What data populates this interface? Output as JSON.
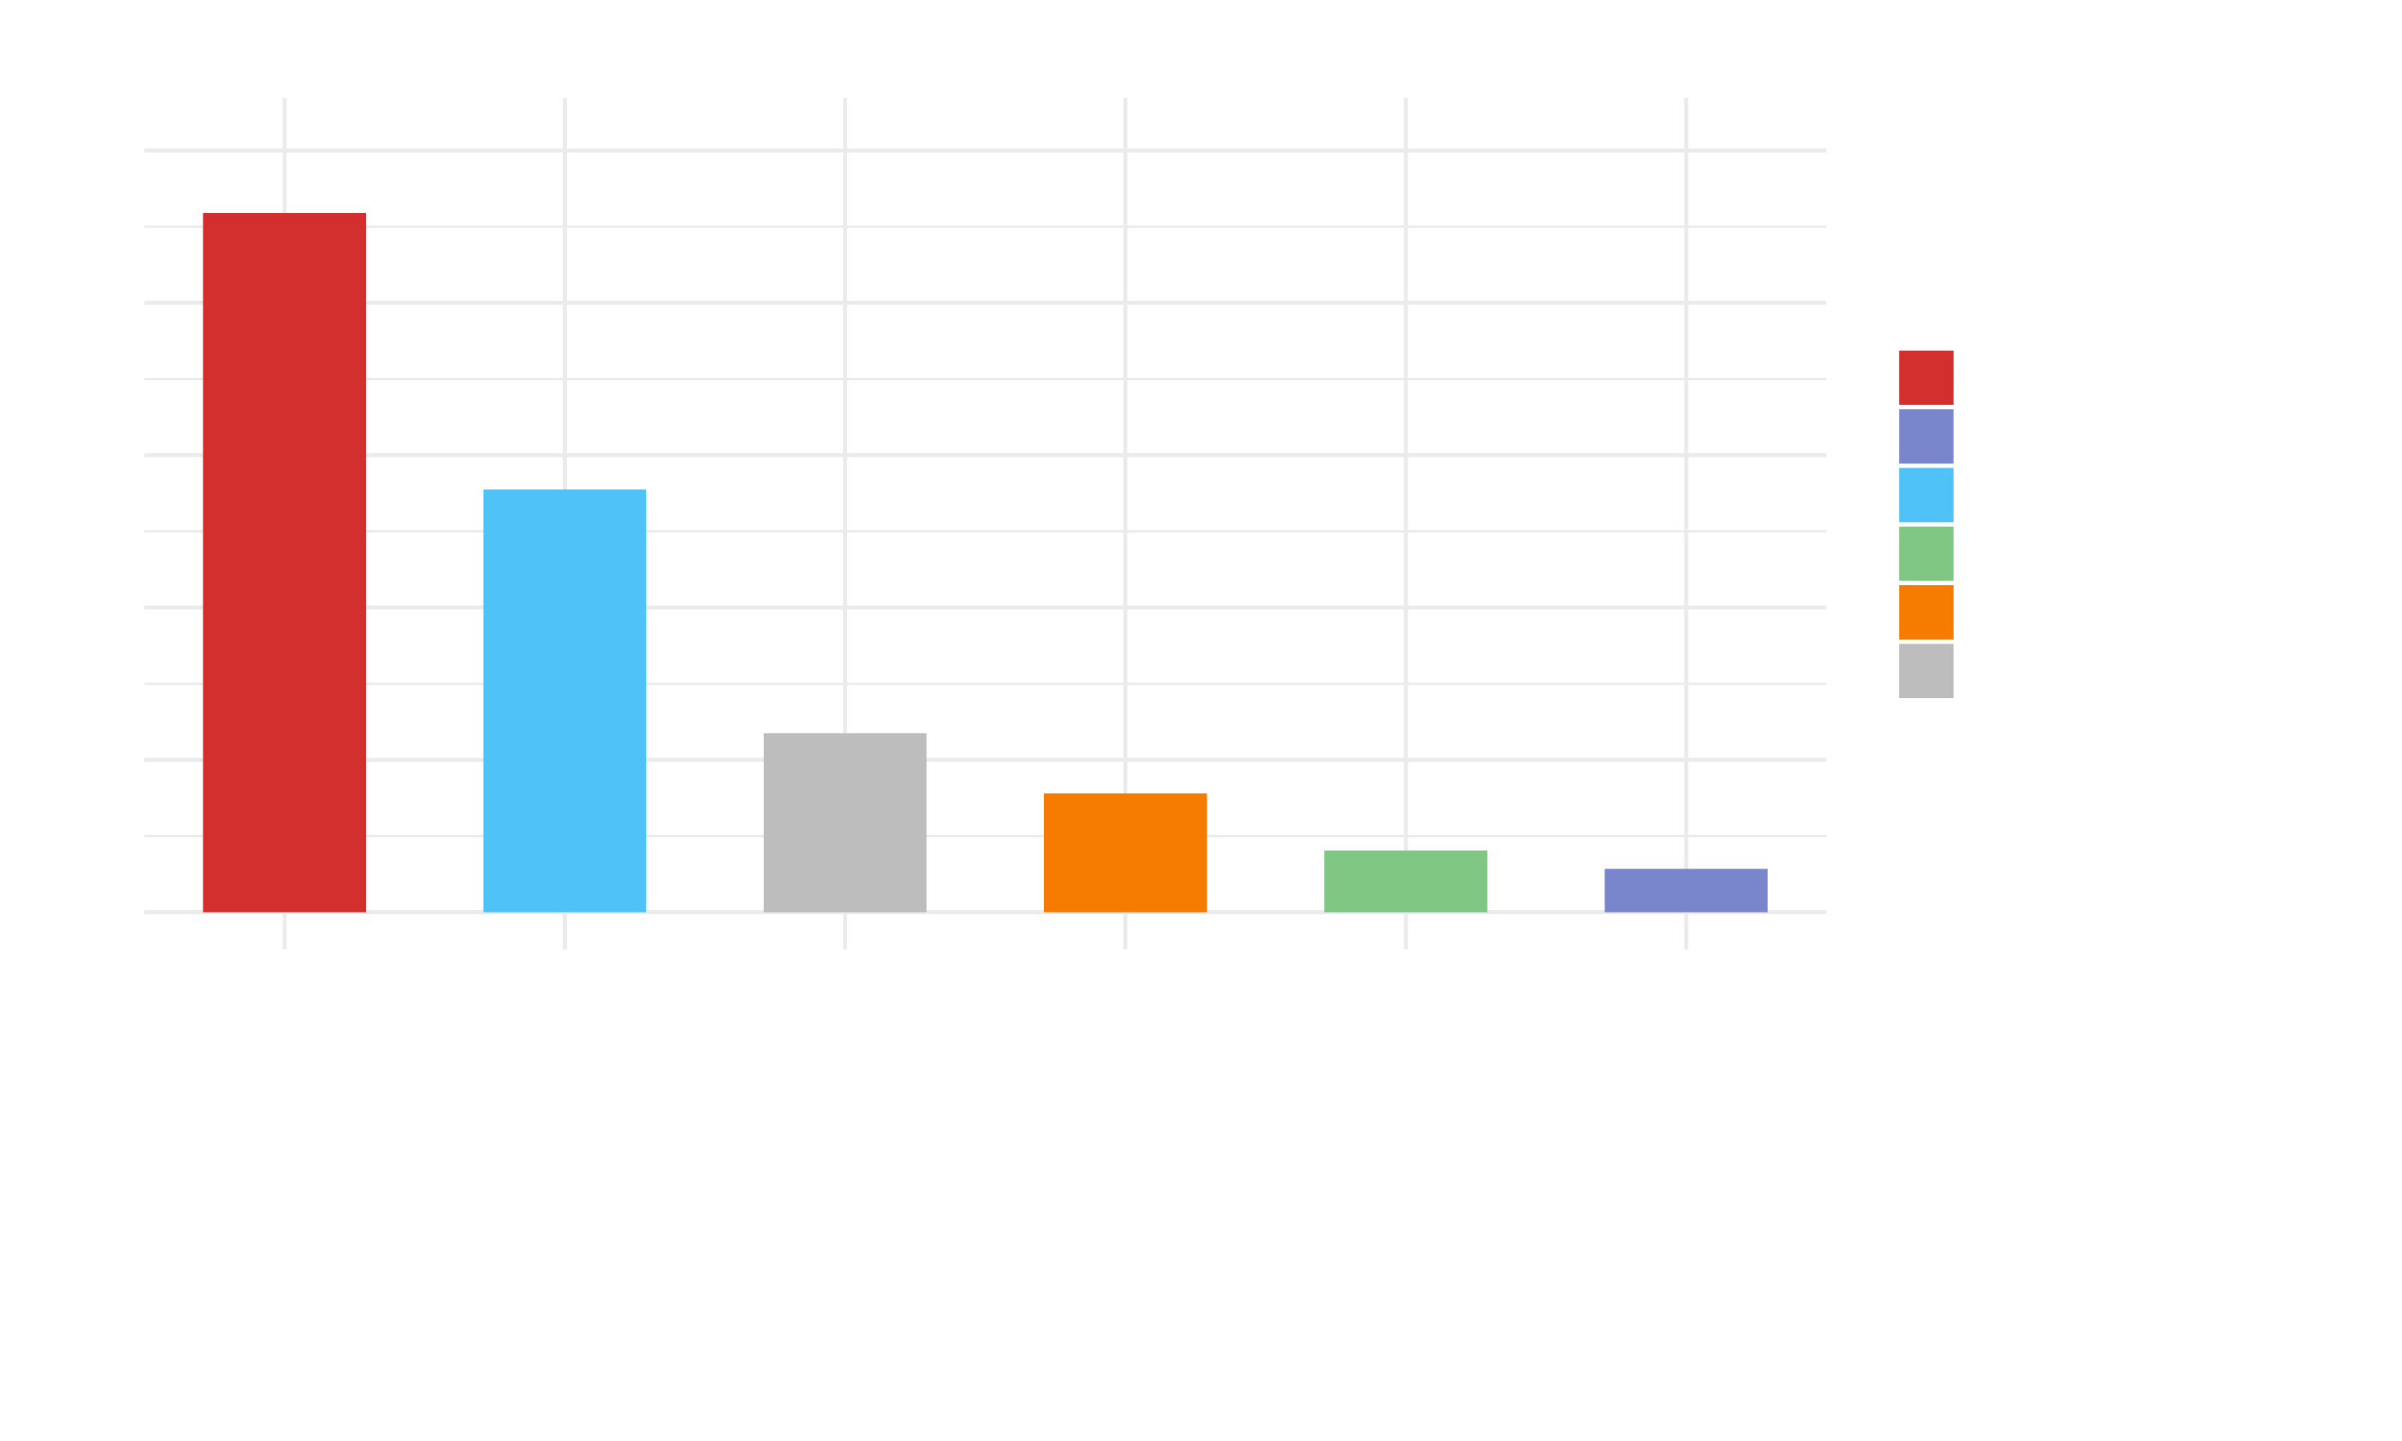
{
  "chart_data": {
    "type": "bar",
    "title": "",
    "xlabel": "",
    "ylabel": "",
    "ylim": [
      0,
      100
    ],
    "grid": true,
    "legend": {
      "position": "right",
      "labels_visible": false
    },
    "colors": {
      "background": "#ffffff",
      "grid": "#ebebeb"
    },
    "bars": [
      {
        "value": 91.8,
        "color": "#d32f2f"
      },
      {
        "value": 55.5,
        "color": "#4fc3f7"
      },
      {
        "value": 23.5,
        "color": "#bdbdbd"
      },
      {
        "value": 15.6,
        "color": "#f57c00"
      },
      {
        "value": 8.1,
        "color": "#81c784"
      },
      {
        "value": 5.7,
        "color": "#7986cb"
      }
    ],
    "legend_swatches": [
      "#d32f2f",
      "#7986cb",
      "#4fc3f7",
      "#81c784",
      "#f57c00",
      "#bdbdbd"
    ]
  }
}
